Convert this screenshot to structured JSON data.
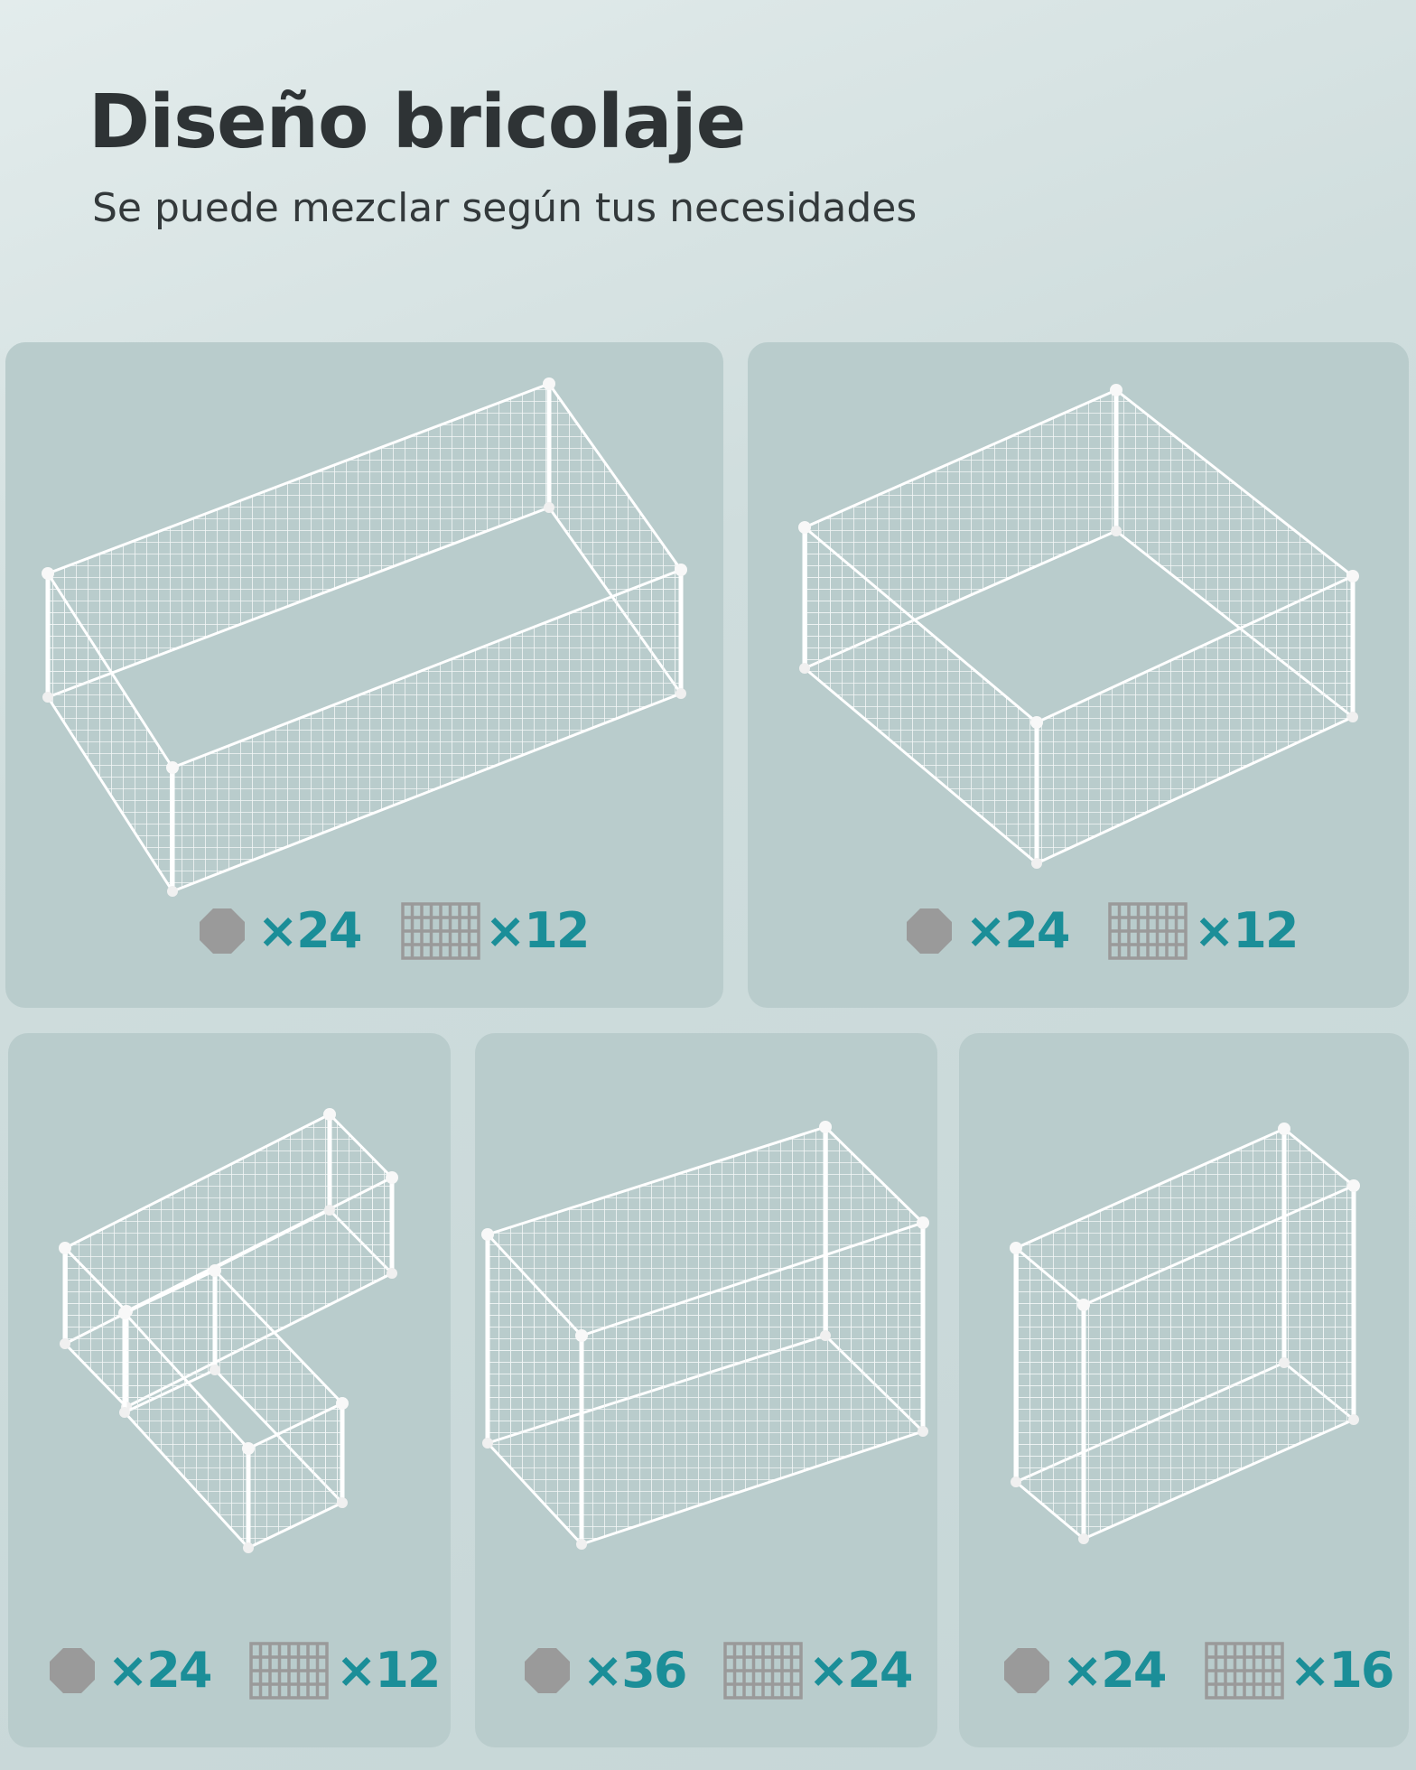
{
  "header": {
    "title": "Diseño bricolaje",
    "subtitle": "Se puede mezclar según tus necesidades"
  },
  "panels": [
    {
      "connectors": "×24",
      "grids": "×12"
    },
    {
      "connectors": "×24",
      "grids": "×12"
    },
    {
      "connectors": "×24",
      "grids": "×12"
    },
    {
      "connectors": "×36",
      "grids": "×24"
    },
    {
      "connectors": "×24",
      "grids": "×16"
    }
  ]
}
